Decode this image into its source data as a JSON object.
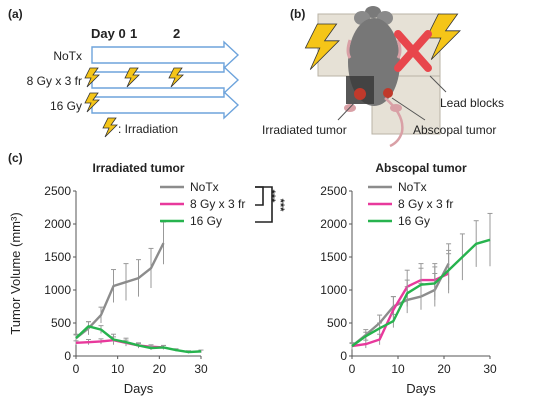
{
  "panels": {
    "a": {
      "label": "(a)",
      "day_header": [
        "Day 0",
        "1",
        "2"
      ],
      "rows": [
        "NoTx",
        "8 Gy x 3 fr",
        "16 Gy"
      ],
      "legend": ": Irradiation"
    },
    "b": {
      "label": "(b)",
      "annotations": [
        "Lead blocks",
        "Irradiated tumor",
        "Abscopal tumor"
      ]
    },
    "c": {
      "label": "(c)"
    }
  },
  "significance": [
    "***",
    "***"
  ],
  "colors": {
    "notx": "#8c8c8c",
    "gy8": "#e8399c",
    "gy16": "#27b34e",
    "arrow": "#6ea4dc",
    "bolt": "#f5c518",
    "cross": "#e8464c"
  },
  "chart_data": [
    {
      "type": "line",
      "title": "Irradiated tumor",
      "xlabel": "Days",
      "ylabel": "Tumor Volume  (mm³)",
      "xlim": [
        0,
        30
      ],
      "ylim": [
        0,
        2500
      ],
      "xticks": [
        "0",
        "10",
        "20",
        "30"
      ],
      "yticks": [
        "0",
        "500",
        "1000",
        "1500",
        "2000",
        "2500"
      ],
      "legend_position": "top-right",
      "series": [
        {
          "name": "NoTx",
          "x": [
            0,
            3,
            6,
            9,
            12,
            15,
            18,
            21
          ],
          "y": [
            270,
            420,
            620,
            1060,
            1120,
            1180,
            1330,
            1710
          ],
          "err": [
            60,
            100,
            120,
            250,
            280,
            280,
            300,
            320
          ]
        },
        {
          "name": "8 Gy x 3 fr",
          "x": [
            0,
            3,
            6,
            9,
            12,
            15,
            18,
            21
          ],
          "y": [
            200,
            210,
            220,
            240,
            200,
            160,
            140,
            130
          ],
          "err": [
            30,
            40,
            40,
            50,
            40,
            30,
            30,
            30
          ]
        },
        {
          "name": "16 Gy",
          "x": [
            0,
            3,
            6,
            9,
            12,
            15,
            18,
            21,
            24,
            27,
            30
          ],
          "y": [
            270,
            450,
            400,
            250,
            210,
            160,
            120,
            130,
            90,
            60,
            70
          ],
          "err": [
            50,
            70,
            60,
            80,
            60,
            40,
            30,
            30,
            20,
            20,
            20
          ]
        }
      ]
    },
    {
      "type": "line",
      "title": "Abscopal tumor",
      "xlabel": "Days",
      "ylabel": "",
      "xlim": [
        0,
        30
      ],
      "ylim": [
        0,
        2500
      ],
      "xticks": [
        "0",
        "10",
        "20",
        "30"
      ],
      "yticks": [
        "0",
        "500",
        "1000",
        "1500",
        "2000",
        "2500"
      ],
      "legend_position": "top-left",
      "series": [
        {
          "name": "NoTx",
          "x": [
            0,
            3,
            6,
            9,
            12,
            15,
            18,
            21
          ],
          "y": [
            150,
            320,
            500,
            750,
            850,
            900,
            1000,
            1400
          ],
          "err": [
            50,
            80,
            120,
            150,
            200,
            200,
            250,
            300
          ]
        },
        {
          "name": "8 Gy x 3 fr",
          "x": [
            0,
            3,
            6,
            9,
            12,
            15,
            18,
            21
          ],
          "y": [
            150,
            180,
            250,
            700,
            1050,
            1150,
            1150,
            1250
          ],
          "err": [
            40,
            60,
            80,
            200,
            250,
            250,
            250,
            300
          ]
        },
        {
          "name": "16 Gy",
          "x": [
            0,
            3,
            6,
            9,
            12,
            15,
            18,
            21,
            24,
            27,
            30
          ],
          "y": [
            150,
            300,
            420,
            530,
            950,
            1080,
            1100,
            1300,
            1500,
            1700,
            1760
          ],
          "err": [
            50,
            60,
            80,
            100,
            200,
            250,
            250,
            300,
            350,
            350,
            400
          ]
        }
      ]
    }
  ]
}
